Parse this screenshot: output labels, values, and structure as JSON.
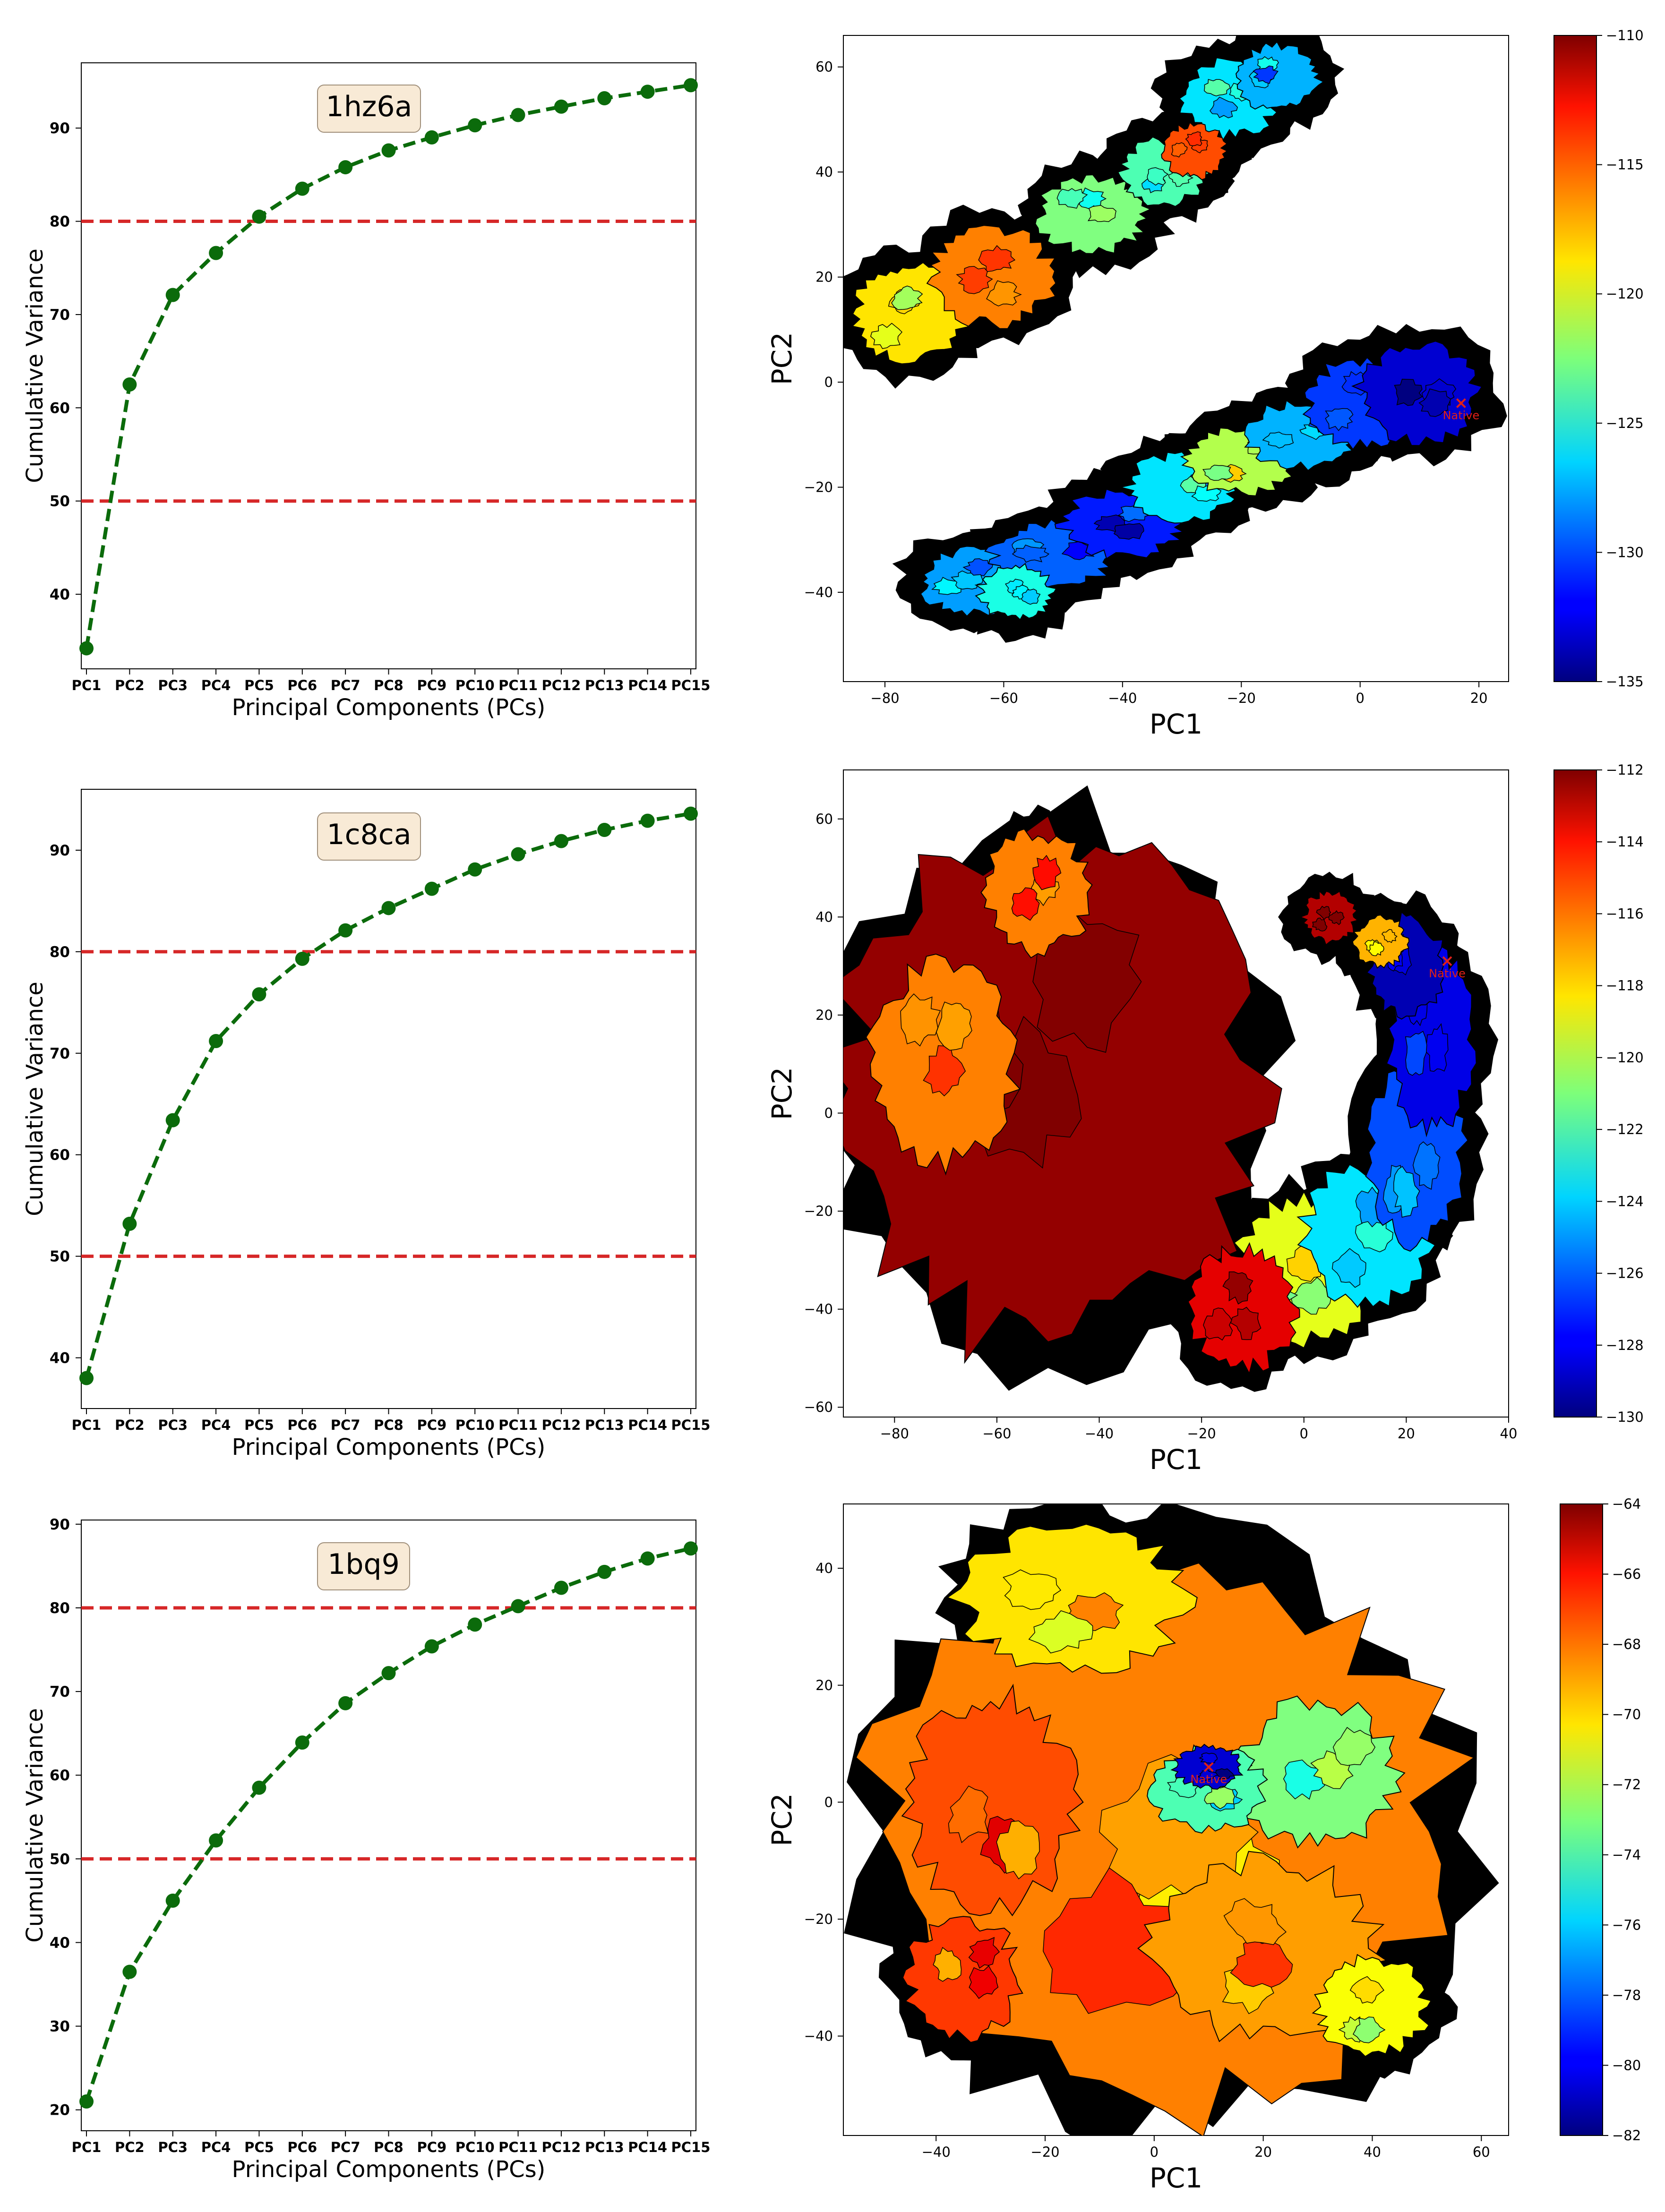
{
  "figure": {
    "background": "#ffffff"
  },
  "colors": {
    "variance_line": "#0b6b0b",
    "threshold_line": "#d62728",
    "label_box_fill": "#f8ead6",
    "label_box_stroke": "#a08f7a",
    "basin_outline": "#000000",
    "native_marker": "#e0201a"
  },
  "native_label": "Native",
  "chart_data": [
    {
      "type": "line",
      "panel": "variance-1hz6a",
      "label": "1hz6a",
      "xlabel": "Principal Components (PCs)",
      "ylabel": "Cumulative Variance",
      "categories": [
        "PC1",
        "PC2",
        "PC3",
        "PC4",
        "PC5",
        "PC6",
        "PC7",
        "PC8",
        "PC9",
        "PC10",
        "PC11",
        "PC12",
        "PC13",
        "PC14",
        "PC15"
      ],
      "values": [
        34.2,
        62.5,
        72.1,
        76.6,
        80.5,
        83.5,
        85.8,
        87.6,
        89.0,
        90.3,
        91.4,
        92.3,
        93.2,
        93.9,
        94.6
      ],
      "ylim": [
        32,
        97
      ],
      "yticks": [
        40,
        50,
        60,
        70,
        80,
        90
      ],
      "hlines": [
        50,
        80
      ]
    },
    {
      "type": "heatmap",
      "panel": "landscape-1hz6a",
      "xlabel": "PC1",
      "ylabel": "PC2",
      "xlim": [
        -87,
        25
      ],
      "ylim": [
        -57,
        66
      ],
      "xticks": [
        -80,
        -60,
        -40,
        -20,
        0,
        20
      ],
      "yticks": [
        -40,
        -20,
        0,
        20,
        40,
        60
      ],
      "colorbar": {
        "min": -135,
        "max": -110,
        "ticks": [
          -135,
          -130,
          -125,
          -120,
          -115,
          -110
        ]
      },
      "native": {
        "x": 17,
        "y": -4
      }
    },
    {
      "type": "line",
      "panel": "variance-1c8ca",
      "label": "1c8ca",
      "xlabel": "Principal Components (PCs)",
      "ylabel": "Cumulative Variance",
      "categories": [
        "PC1",
        "PC2",
        "PC3",
        "PC4",
        "PC5",
        "PC6",
        "PC7",
        "PC8",
        "PC9",
        "PC10",
        "PC11",
        "PC12",
        "PC13",
        "PC14",
        "PC15"
      ],
      "values": [
        38.0,
        53.2,
        63.4,
        71.2,
        75.8,
        79.3,
        82.1,
        84.3,
        86.2,
        88.1,
        89.6,
        90.9,
        92.0,
        92.9,
        93.6
      ],
      "ylim": [
        35,
        96
      ],
      "yticks": [
        40,
        50,
        60,
        70,
        80,
        90
      ],
      "hlines": [
        50,
        80
      ]
    },
    {
      "type": "heatmap",
      "panel": "landscape-1c8ca",
      "xlabel": "PC1",
      "ylabel": "PC2",
      "xlim": [
        -90,
        40
      ],
      "ylim": [
        -62,
        70
      ],
      "xticks": [
        -80,
        -60,
        -40,
        -20,
        0,
        20,
        40
      ],
      "yticks": [
        -60,
        -40,
        -20,
        0,
        20,
        40,
        60
      ],
      "colorbar": {
        "min": -130,
        "max": -112,
        "ticks": [
          -130,
          -128,
          -126,
          -124,
          -122,
          -120,
          -118,
          -116,
          -114,
          -112
        ]
      },
      "native": {
        "x": 28,
        "y": 31
      }
    },
    {
      "type": "line",
      "panel": "variance-1bq9",
      "label": "1bq9",
      "xlabel": "Principal Components (PCs)",
      "ylabel": "Cumulative Variance",
      "categories": [
        "PC1",
        "PC2",
        "PC3",
        "PC4",
        "PC5",
        "PC6",
        "PC7",
        "PC8",
        "PC9",
        "PC10",
        "PC11",
        "PC12",
        "PC13",
        "PC14",
        "PC15"
      ],
      "values": [
        21.0,
        36.5,
        45.0,
        52.2,
        58.5,
        63.9,
        68.6,
        72.2,
        75.4,
        78.0,
        80.2,
        82.4,
        84.3,
        85.9,
        87.1
      ],
      "ylim": [
        17.5,
        90.5
      ],
      "yticks": [
        20,
        30,
        40,
        50,
        60,
        70,
        80,
        90
      ],
      "hlines": [
        50,
        80
      ]
    },
    {
      "type": "heatmap",
      "panel": "landscape-1bq9",
      "xlabel": "PC1",
      "ylabel": "PC2",
      "xlim": [
        -57,
        65
      ],
      "ylim": [
        -57,
        51
      ],
      "xticks": [
        -40,
        -20,
        0,
        20,
        40,
        60
      ],
      "yticks": [
        -40,
        -20,
        0,
        20,
        40
      ],
      "colorbar": {
        "min": -82,
        "max": -64,
        "ticks": [
          -82,
          -80,
          -78,
          -76,
          -74,
          -72,
          -70,
          -68,
          -66,
          -64
        ]
      },
      "native": {
        "x": 10,
        "y": 6
      }
    }
  ]
}
